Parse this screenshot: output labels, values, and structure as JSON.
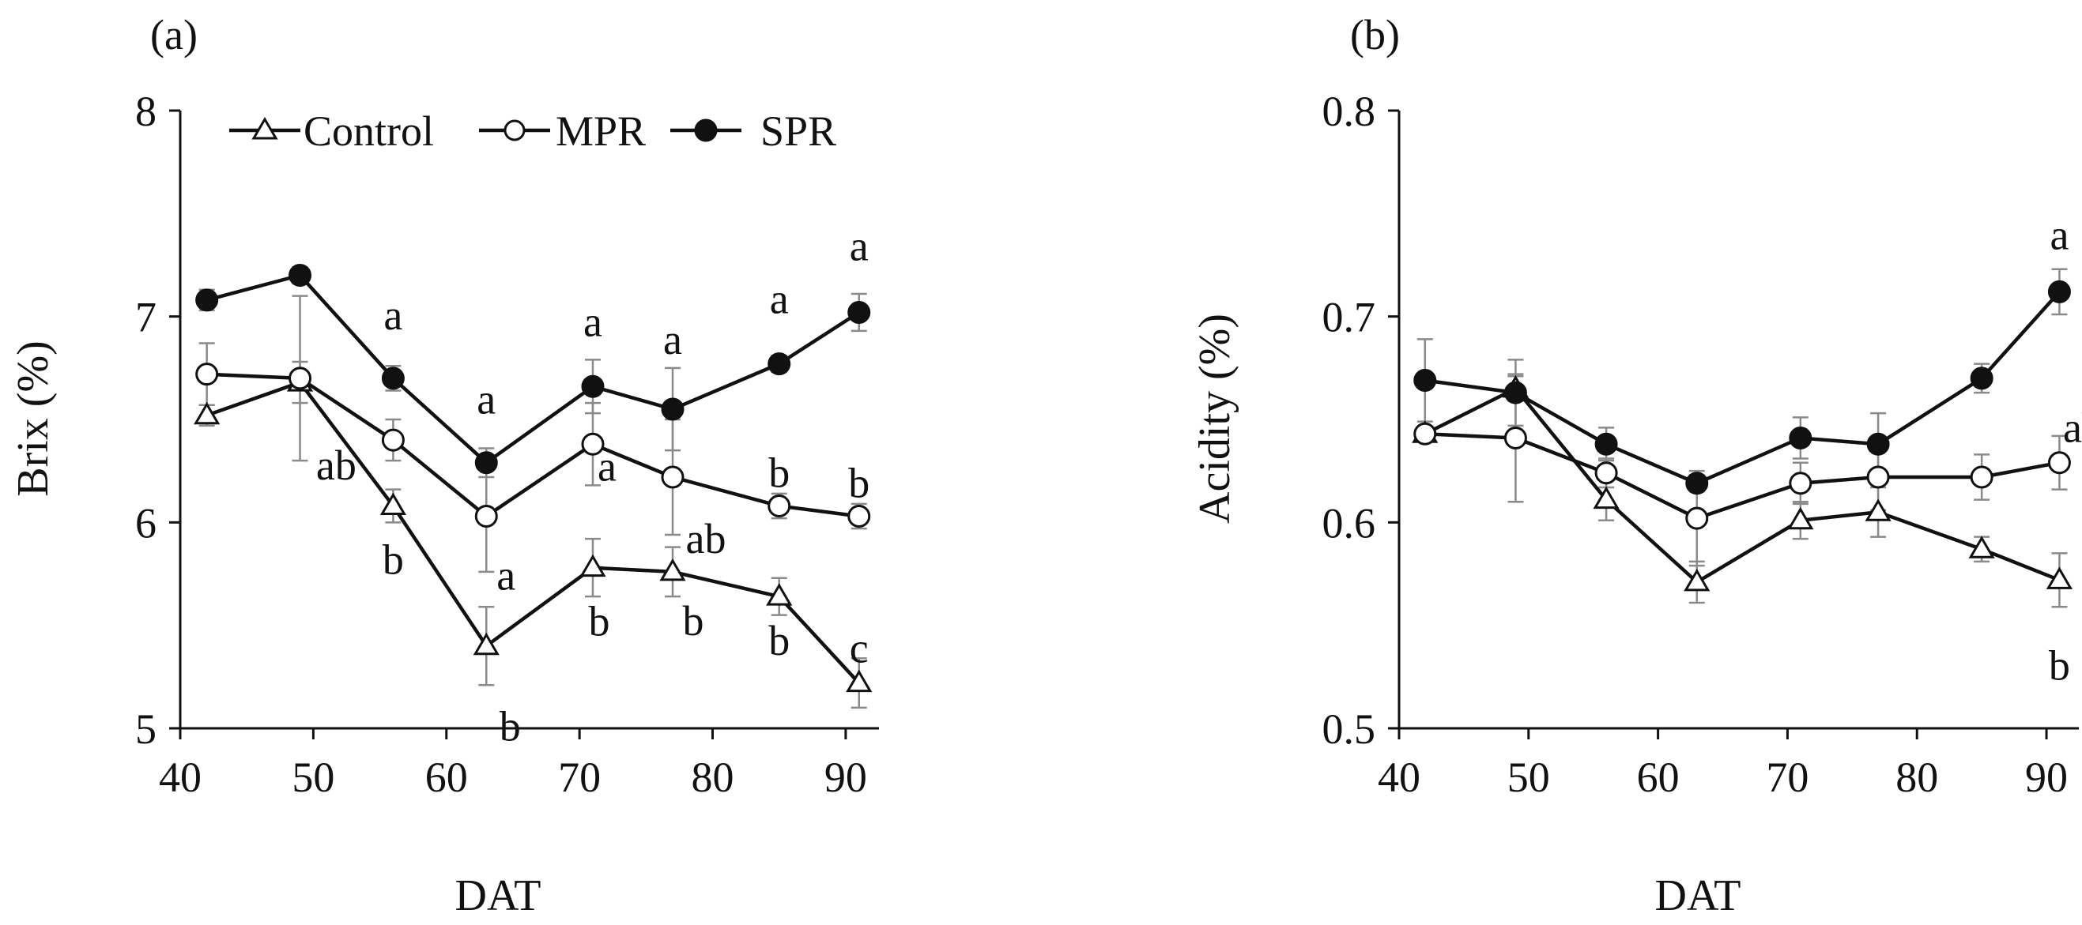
{
  "chart_data": [
    {
      "type": "line",
      "panel_label": "(a)",
      "xlabel": "DAT",
      "ylabel": "Brix (%)",
      "xlim": [
        40,
        92.5
      ],
      "ylim": [
        5,
        8
      ],
      "xticks": [
        "40",
        "50",
        "60",
        "70",
        "80",
        "90"
      ],
      "yticks": [
        "5",
        "6",
        "7",
        "8"
      ],
      "legend_position": "top",
      "x": [
        42,
        49,
        56,
        63,
        71,
        77,
        85,
        91
      ],
      "series": [
        {
          "name": "Control",
          "marker": "triangle",
          "values": [
            6.52,
            6.68,
            6.08,
            5.4,
            5.78,
            5.76,
            5.64,
            5.22
          ],
          "errors": [
            0.05,
            0.1,
            0.08,
            0.19,
            0.14,
            0.12,
            0.09,
            0.12
          ],
          "letters": [
            "",
            "",
            "b",
            "b",
            "b",
            "b",
            "b",
            "c"
          ]
        },
        {
          "name": "MPR",
          "marker": "open-circle",
          "values": [
            6.72,
            6.7,
            6.4,
            6.03,
            6.38,
            6.22,
            6.08,
            6.03
          ],
          "errors": [
            0.15,
            0.4,
            0.1,
            0.27,
            0.2,
            0.28,
            0.06,
            0.06
          ],
          "letters": [
            "",
            "",
            "ab",
            "a",
            "a",
            "ab",
            "b",
            "b"
          ]
        },
        {
          "name": "SPR",
          "marker": "filled-circle",
          "values": [
            7.08,
            7.2,
            6.7,
            6.29,
            6.66,
            6.55,
            6.77,
            7.02
          ],
          "errors": [
            0.05,
            0.04,
            0.06,
            0.07,
            0.13,
            0.2,
            0.04,
            0.09
          ],
          "letters": [
            "",
            "",
            "a",
            "a",
            "a",
            "a",
            "a",
            "a"
          ]
        }
      ]
    },
    {
      "type": "line",
      "panel_label": "(b)",
      "xlabel": "DAT",
      "ylabel": "Acidity (%)",
      "xlim": [
        40,
        92.5
      ],
      "ylim": [
        0.5,
        0.8
      ],
      "xticks": [
        "40",
        "50",
        "60",
        "70",
        "80",
        "90"
      ],
      "yticks": [
        "0.5",
        "0.6",
        "0.7",
        "0.8"
      ],
      "x": [
        42,
        49,
        56,
        63,
        71,
        77,
        85,
        91
      ],
      "series": [
        {
          "name": "Control",
          "marker": "triangle",
          "values": [
            0.643,
            0.665,
            0.611,
            0.571,
            0.601,
            0.605,
            0.587,
            0.572
          ],
          "errors": [
            0.003,
            0.006,
            0.01,
            0.01,
            0.009,
            0.012,
            0.006,
            0.013
          ],
          "letters": [
            "",
            "",
            "",
            "",
            "",
            "",
            "",
            "b"
          ]
        },
        {
          "name": "MPR",
          "marker": "open-circle",
          "values": [
            0.643,
            0.641,
            0.624,
            0.602,
            0.619,
            0.622,
            0.622,
            0.629
          ],
          "errors": [
            0.003,
            0.031,
            0.007,
            0.023,
            0.01,
            0.016,
            0.011,
            0.013
          ],
          "letters": [
            "",
            "",
            "",
            "",
            "",
            "",
            "",
            "ab"
          ]
        },
        {
          "name": "SPR",
          "marker": "filled-circle",
          "values": [
            0.669,
            0.663,
            0.638,
            0.619,
            0.641,
            0.638,
            0.67,
            0.712
          ],
          "errors": [
            0.02,
            0.016,
            0.008,
            0.004,
            0.01,
            0.015,
            0.007,
            0.011
          ],
          "letters": [
            "",
            "",
            "",
            "",
            "",
            "",
            "",
            "a"
          ]
        }
      ]
    }
  ],
  "colors": {
    "ink": "#111111",
    "error_bar": "#8a8a8a",
    "marker_fill_open": "#ffffff"
  }
}
